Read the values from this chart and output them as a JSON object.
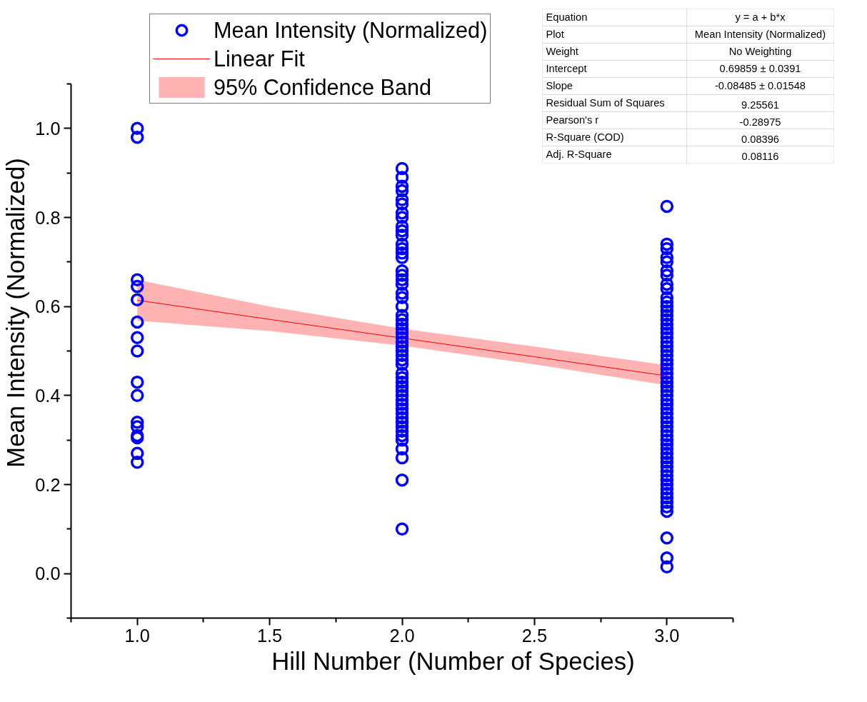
{
  "chart_data": {
    "type": "scatter",
    "xlabel": "Hill Number (Number of Species)",
    "ylabel": "Mean Intensity (Normalized)",
    "xlim": [
      0.75,
      3.25
    ],
    "ylim": [
      -0.1,
      1.1
    ],
    "xticks": [
      {
        "value": 1,
        "label": "1.0"
      },
      {
        "value": 1.5,
        "label": "1.5"
      },
      {
        "value": 2,
        "label": "2.0"
      },
      {
        "value": 2.5,
        "label": "2.5"
      },
      {
        "value": 3,
        "label": "3.0"
      }
    ],
    "yticks": [
      {
        "value": 0,
        "label": "0.0"
      },
      0.2,
      0.4,
      0.6,
      0.8,
      {
        "value": 1,
        "label": "1.0"
      }
    ],
    "grid": false,
    "legend": "top left",
    "series": [
      {
        "name": "95% Confidence Band",
        "type": "area",
        "color": "#ffb3b3"
      },
      {
        "name": "Linear Fit",
        "type": "line",
        "color": "#ff0000",
        "x": [
          1,
          1.5,
          2,
          2.5,
          3
        ],
        "values": [
          0.614,
          0.571,
          0.529,
          0.487,
          0.444
        ],
        "lower": [
          0.568,
          0.545,
          0.512,
          0.47,
          0.423
        ],
        "upper": [
          0.66,
          0.6,
          0.55,
          0.51,
          0.468
        ]
      },
      {
        "name": "Mean Intensity (Normalized)",
        "marker": "circle",
        "color": "#0000ff",
        "x": [
          1,
          1,
          1,
          1,
          1,
          1,
          1,
          1,
          1,
          1,
          1,
          1,
          1,
          1,
          1,
          1,
          2,
          2,
          2,
          2,
          2,
          2,
          2,
          2,
          2,
          2,
          2,
          2,
          2,
          2,
          2,
          2,
          2,
          2,
          2,
          2,
          2,
          2,
          2,
          2,
          2,
          2,
          2,
          2,
          2,
          2,
          2,
          2,
          2,
          2,
          2,
          2,
          2,
          2,
          2,
          2,
          2,
          2,
          2,
          2,
          2,
          2,
          2,
          2,
          2,
          2,
          2,
          2,
          2,
          2,
          3,
          3,
          3,
          3,
          3,
          3,
          3,
          3,
          3,
          3,
          3,
          3,
          3,
          3,
          3,
          3,
          3,
          3,
          3,
          3,
          3,
          3,
          3,
          3,
          3,
          3,
          3,
          3,
          3,
          3,
          3,
          3,
          3,
          3,
          3,
          3,
          3,
          3,
          3,
          3,
          3,
          3,
          3,
          3,
          3,
          3,
          3,
          3,
          3,
          3,
          3,
          3,
          3,
          3,
          3,
          3,
          3,
          3,
          3,
          3,
          3
        ],
        "values": [
          1.0,
          0.98,
          0.66,
          0.645,
          0.615,
          0.565,
          0.53,
          0.5,
          0.43,
          0.4,
          0.34,
          0.33,
          0.31,
          0.305,
          0.27,
          0.25,
          0.91,
          0.89,
          0.87,
          0.86,
          0.84,
          0.83,
          0.81,
          0.8,
          0.78,
          0.77,
          0.76,
          0.74,
          0.73,
          0.72,
          0.71,
          0.68,
          0.67,
          0.66,
          0.65,
          0.63,
          0.62,
          0.6,
          0.58,
          0.57,
          0.56,
          0.55,
          0.54,
          0.53,
          0.52,
          0.51,
          0.5,
          0.49,
          0.48,
          0.47,
          0.45,
          0.44,
          0.43,
          0.42,
          0.41,
          0.4,
          0.39,
          0.38,
          0.37,
          0.36,
          0.35,
          0.34,
          0.33,
          0.32,
          0.31,
          0.3,
          0.28,
          0.26,
          0.21,
          0.1,
          0.825,
          0.74,
          0.73,
          0.71,
          0.7,
          0.68,
          0.67,
          0.65,
          0.64,
          0.62,
          0.61,
          0.6,
          0.59,
          0.58,
          0.57,
          0.56,
          0.55,
          0.54,
          0.53,
          0.52,
          0.51,
          0.5,
          0.49,
          0.48,
          0.47,
          0.46,
          0.45,
          0.44,
          0.43,
          0.42,
          0.41,
          0.4,
          0.39,
          0.38,
          0.37,
          0.36,
          0.35,
          0.34,
          0.33,
          0.32,
          0.31,
          0.3,
          0.29,
          0.28,
          0.27,
          0.26,
          0.25,
          0.24,
          0.23,
          0.22,
          0.21,
          0.2,
          0.19,
          0.18,
          0.17,
          0.16,
          0.15,
          0.14,
          0.08,
          0.035,
          0.015
        ]
      }
    ],
    "annotations": [
      "Equation",
      "y = a + b*x",
      "Plot",
      "Mean Intensity (Normalized)",
      "Weight",
      "No Weighting",
      "Intercept",
      "0.69859 ± 0.0391",
      "Slope",
      "-0.08485 ± 0.01548",
      "Residual Sum of Squares",
      "9.25561",
      "Pearson's r",
      "-0.28975",
      "R-Square (COD)",
      "0.08396",
      "Adj. R-Square",
      "0.08116"
    ]
  }
}
